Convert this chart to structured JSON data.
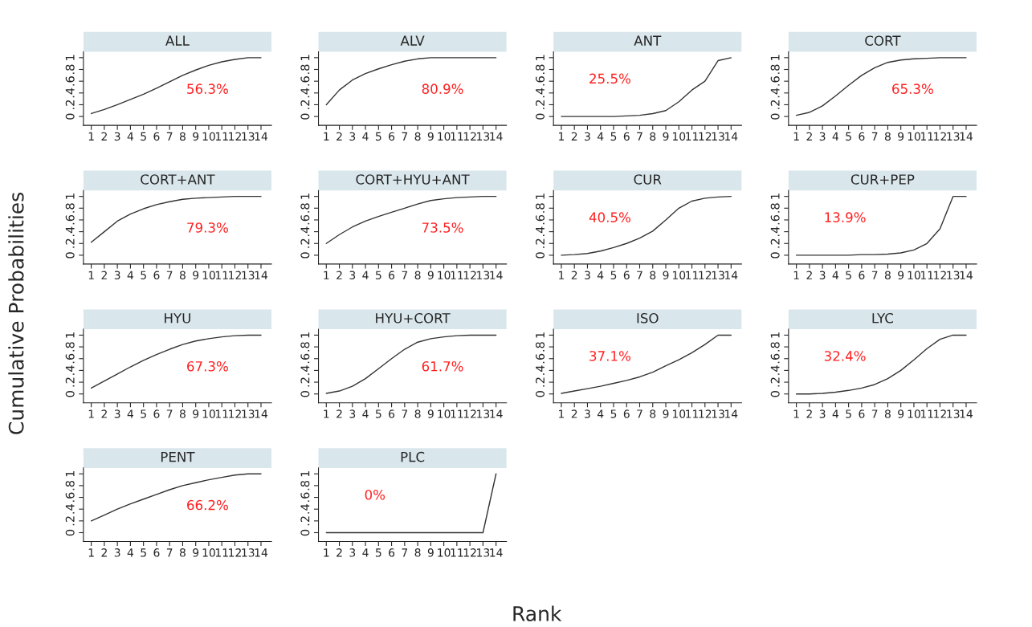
{
  "chart_data": [
    {
      "type": "line",
      "title": "ALL",
      "x": [
        1,
        2,
        3,
        4,
        5,
        6,
        7,
        8,
        9,
        10,
        11,
        12,
        13,
        14
      ],
      "series": [
        {
          "color": "#333333",
          "values": [
            0.05,
            0.12,
            0.2,
            0.29,
            0.38,
            0.48,
            0.59,
            0.7,
            0.79,
            0.87,
            0.93,
            0.97,
            1,
            1
          ]
        }
      ],
      "xlim": [
        0.4,
        14.8
      ],
      "ylim": [
        -0.15,
        1.1
      ],
      "xticks": [
        1,
        2,
        3,
        4,
        5,
        6,
        7,
        8,
        9,
        10,
        11,
        12,
        13,
        14
      ],
      "yticks": [
        0,
        {
          "value": 0.2,
          "label": ".2"
        },
        {
          "value": 0.4,
          "label": ".4"
        },
        {
          "value": 0.6,
          "label": ".6"
        },
        {
          "value": 0.8,
          "label": ".8"
        },
        1
      ],
      "grid": false,
      "annotations": [
        "56.3%"
      ]
    },
    {
      "type": "line",
      "title": "ALV",
      "x": [
        1,
        2,
        3,
        4,
        5,
        6,
        7,
        8,
        9,
        10,
        11,
        12,
        13,
        14
      ],
      "series": [
        {
          "color": "#333333",
          "values": [
            0.2,
            0.45,
            0.62,
            0.73,
            0.81,
            0.88,
            0.94,
            0.98,
            1,
            1,
            1,
            1,
            1,
            1
          ]
        }
      ],
      "xlim": [
        0.4,
        14.8
      ],
      "ylim": [
        -0.15,
        1.1
      ],
      "xticks": [
        1,
        2,
        3,
        4,
        5,
        6,
        7,
        8,
        9,
        10,
        11,
        12,
        13,
        14
      ],
      "yticks": [
        0,
        {
          "value": 0.2,
          "label": ".2"
        },
        {
          "value": 0.4,
          "label": ".4"
        },
        {
          "value": 0.6,
          "label": ".6"
        },
        {
          "value": 0.8,
          "label": ".8"
        },
        1
      ],
      "grid": false,
      "annotations": [
        "80.9%"
      ]
    },
    {
      "type": "line",
      "title": "ANT",
      "x": [
        1,
        2,
        3,
        4,
        5,
        6,
        7,
        8,
        9,
        10,
        11,
        12,
        13,
        14
      ],
      "series": [
        {
          "color": "#333333",
          "values": [
            0,
            0,
            0,
            0,
            0,
            0.01,
            0.02,
            0.05,
            0.1,
            0.25,
            0.45,
            0.6,
            0.95,
            1
          ]
        }
      ],
      "xlim": [
        0.4,
        14.8
      ],
      "ylim": [
        -0.15,
        1.1
      ],
      "xticks": [
        1,
        2,
        3,
        4,
        5,
        6,
        7,
        8,
        9,
        10,
        11,
        12,
        13,
        14
      ],
      "yticks": [
        0,
        {
          "value": 0.2,
          "label": ".2"
        },
        {
          "value": 0.4,
          "label": ".4"
        },
        {
          "value": 0.6,
          "label": ".6"
        },
        {
          "value": 0.8,
          "label": ".8"
        },
        1
      ],
      "grid": false,
      "annotations": [
        "25.5%"
      ]
    },
    {
      "type": "line",
      "title": "CORT",
      "x": [
        1,
        2,
        3,
        4,
        5,
        6,
        7,
        8,
        9,
        10,
        11,
        12,
        13,
        14
      ],
      "series": [
        {
          "color": "#333333",
          "values": [
            0.02,
            0.07,
            0.18,
            0.35,
            0.53,
            0.7,
            0.83,
            0.92,
            0.96,
            0.98,
            0.99,
            1,
            1,
            1
          ]
        }
      ],
      "xlim": [
        0.4,
        14.8
      ],
      "ylim": [
        -0.15,
        1.1
      ],
      "xticks": [
        1,
        2,
        3,
        4,
        5,
        6,
        7,
        8,
        9,
        10,
        11,
        12,
        13,
        14
      ],
      "yticks": [
        0,
        {
          "value": 0.2,
          "label": ".2"
        },
        {
          "value": 0.4,
          "label": ".4"
        },
        {
          "value": 0.6,
          "label": ".6"
        },
        {
          "value": 0.8,
          "label": ".8"
        },
        1
      ],
      "grid": false,
      "annotations": [
        "65.3%"
      ]
    },
    {
      "type": "line",
      "title": "CORT+ANT",
      "ylabel": "Cumulative Probabilities",
      "x": [
        1,
        2,
        3,
        4,
        5,
        6,
        7,
        8,
        9,
        10,
        11,
        12,
        13,
        14
      ],
      "series": [
        {
          "color": "#333333",
          "values": [
            0.22,
            0.4,
            0.58,
            0.7,
            0.79,
            0.86,
            0.91,
            0.95,
            0.97,
            0.98,
            0.99,
            1,
            1,
            1
          ]
        }
      ],
      "xlim": [
        0.4,
        14.8
      ],
      "ylim": [
        -0.15,
        1.1
      ],
      "xticks": [
        1,
        2,
        3,
        4,
        5,
        6,
        7,
        8,
        9,
        10,
        11,
        12,
        13,
        14
      ],
      "yticks": [
        0,
        {
          "value": 0.2,
          "label": ".2"
        },
        {
          "value": 0.4,
          "label": ".4"
        },
        {
          "value": 0.6,
          "label": ".6"
        },
        {
          "value": 0.8,
          "label": ".8"
        },
        1
      ],
      "grid": false,
      "annotations": [
        "79.3%"
      ]
    },
    {
      "type": "line",
      "title": "CORT+HYU+ANT",
      "x": [
        1,
        2,
        3,
        4,
        5,
        6,
        7,
        8,
        9,
        10,
        11,
        12,
        13,
        14
      ],
      "series": [
        {
          "color": "#333333",
          "values": [
            0.2,
            0.35,
            0.48,
            0.58,
            0.66,
            0.73,
            0.8,
            0.87,
            0.93,
            0.96,
            0.98,
            0.99,
            1,
            1
          ]
        }
      ],
      "xlim": [
        0.4,
        14.8
      ],
      "ylim": [
        -0.15,
        1.1
      ],
      "xticks": [
        1,
        2,
        3,
        4,
        5,
        6,
        7,
        8,
        9,
        10,
        11,
        12,
        13,
        14
      ],
      "yticks": [
        0,
        {
          "value": 0.2,
          "label": ".2"
        },
        {
          "value": 0.4,
          "label": ".4"
        },
        {
          "value": 0.6,
          "label": ".6"
        },
        {
          "value": 0.8,
          "label": ".8"
        },
        1
      ],
      "grid": false,
      "annotations": [
        "73.5%"
      ]
    },
    {
      "type": "line",
      "title": "CUR",
      "x": [
        1,
        2,
        3,
        4,
        5,
        6,
        7,
        8,
        9,
        10,
        11,
        12,
        13,
        14
      ],
      "series": [
        {
          "color": "#333333",
          "values": [
            0,
            0.01,
            0.03,
            0.07,
            0.13,
            0.2,
            0.29,
            0.41,
            0.6,
            0.8,
            0.92,
            0.97,
            0.99,
            1
          ]
        }
      ],
      "xlim": [
        0.4,
        14.8
      ],
      "ylim": [
        -0.15,
        1.1
      ],
      "xticks": [
        1,
        2,
        3,
        4,
        5,
        6,
        7,
        8,
        9,
        10,
        11,
        12,
        13,
        14
      ],
      "yticks": [
        0,
        {
          "value": 0.2,
          "label": ".2"
        },
        {
          "value": 0.4,
          "label": ".4"
        },
        {
          "value": 0.6,
          "label": ".6"
        },
        {
          "value": 0.8,
          "label": ".8"
        },
        1
      ],
      "grid": false,
      "annotations": [
        "40.5%"
      ]
    },
    {
      "type": "line",
      "title": "CUR+PEP",
      "x": [
        1,
        2,
        3,
        4,
        5,
        6,
        7,
        8,
        9,
        10,
        11,
        12,
        13,
        14
      ],
      "series": [
        {
          "color": "#333333",
          "values": [
            0,
            0,
            0,
            0,
            0,
            0.01,
            0.01,
            0.02,
            0.04,
            0.09,
            0.2,
            0.45,
            1,
            1
          ]
        }
      ],
      "xlim": [
        0.4,
        14.8
      ],
      "ylim": [
        -0.15,
        1.1
      ],
      "xticks": [
        1,
        2,
        3,
        4,
        5,
        6,
        7,
        8,
        9,
        10,
        11,
        12,
        13,
        14
      ],
      "yticks": [
        0,
        {
          "value": 0.2,
          "label": ".2"
        },
        {
          "value": 0.4,
          "label": ".4"
        },
        {
          "value": 0.6,
          "label": ".6"
        },
        {
          "value": 0.8,
          "label": ".8"
        },
        1
      ],
      "grid": false,
      "annotations": [
        "13.9%"
      ]
    },
    {
      "type": "line",
      "title": "HYU",
      "x": [
        1,
        2,
        3,
        4,
        5,
        6,
        7,
        8,
        9,
        10,
        11,
        12,
        13,
        14
      ],
      "series": [
        {
          "color": "#333333",
          "values": [
            0.1,
            0.22,
            0.34,
            0.46,
            0.57,
            0.67,
            0.76,
            0.84,
            0.9,
            0.94,
            0.97,
            0.99,
            1,
            1
          ]
        }
      ],
      "xlim": [
        0.4,
        14.8
      ],
      "ylim": [
        -0.15,
        1.1
      ],
      "xticks": [
        1,
        2,
        3,
        4,
        5,
        6,
        7,
        8,
        9,
        10,
        11,
        12,
        13,
        14
      ],
      "yticks": [
        0,
        {
          "value": 0.2,
          "label": ".2"
        },
        {
          "value": 0.4,
          "label": ".4"
        },
        {
          "value": 0.6,
          "label": ".6"
        },
        {
          "value": 0.8,
          "label": ".8"
        },
        1
      ],
      "grid": false,
      "annotations": [
        "67.3%"
      ]
    },
    {
      "type": "line",
      "title": "HYU+CORT",
      "x": [
        1,
        2,
        3,
        4,
        5,
        6,
        7,
        8,
        9,
        10,
        11,
        12,
        13,
        14
      ],
      "series": [
        {
          "color": "#333333",
          "values": [
            0.01,
            0.05,
            0.13,
            0.26,
            0.43,
            0.6,
            0.76,
            0.88,
            0.94,
            0.97,
            0.99,
            1,
            1,
            1
          ]
        }
      ],
      "xlim": [
        0.4,
        14.8
      ],
      "ylim": [
        -0.15,
        1.1
      ],
      "xticks": [
        1,
        2,
        3,
        4,
        5,
        6,
        7,
        8,
        9,
        10,
        11,
        12,
        13,
        14
      ],
      "yticks": [
        0,
        {
          "value": 0.2,
          "label": ".2"
        },
        {
          "value": 0.4,
          "label": ".4"
        },
        {
          "value": 0.6,
          "label": ".6"
        },
        {
          "value": 0.8,
          "label": ".8"
        },
        1
      ],
      "grid": false,
      "annotations": [
        "61.7%"
      ]
    },
    {
      "type": "line",
      "title": "ISO",
      "x": [
        1,
        2,
        3,
        4,
        5,
        6,
        7,
        8,
        9,
        10,
        11,
        12,
        13,
        14
      ],
      "series": [
        {
          "color": "#333333",
          "values": [
            0.01,
            0.05,
            0.09,
            0.13,
            0.18,
            0.23,
            0.29,
            0.37,
            0.48,
            0.58,
            0.7,
            0.84,
            1,
            1
          ]
        }
      ],
      "xlim": [
        0.4,
        14.8
      ],
      "ylim": [
        -0.15,
        1.1
      ],
      "xticks": [
        1,
        2,
        3,
        4,
        5,
        6,
        7,
        8,
        9,
        10,
        11,
        12,
        13,
        14
      ],
      "yticks": [
        0,
        {
          "value": 0.2,
          "label": ".2"
        },
        {
          "value": 0.4,
          "label": ".4"
        },
        {
          "value": 0.6,
          "label": ".6"
        },
        {
          "value": 0.8,
          "label": ".8"
        },
        1
      ],
      "grid": false,
      "annotations": [
        "37.1%"
      ]
    },
    {
      "type": "line",
      "title": "LYC",
      "x": [
        1,
        2,
        3,
        4,
        5,
        6,
        7,
        8,
        9,
        10,
        11,
        12,
        13,
        14
      ],
      "series": [
        {
          "color": "#333333",
          "values": [
            0,
            0,
            0.01,
            0.03,
            0.06,
            0.1,
            0.16,
            0.26,
            0.4,
            0.58,
            0.77,
            0.93,
            1,
            1
          ]
        }
      ],
      "xlim": [
        0.4,
        14.8
      ],
      "ylim": [
        -0.15,
        1.1
      ],
      "xticks": [
        1,
        2,
        3,
        4,
        5,
        6,
        7,
        8,
        9,
        10,
        11,
        12,
        13,
        14
      ],
      "yticks": [
        0,
        {
          "value": 0.2,
          "label": ".2"
        },
        {
          "value": 0.4,
          "label": ".4"
        },
        {
          "value": 0.6,
          "label": ".6"
        },
        {
          "value": 0.8,
          "label": ".8"
        },
        1
      ],
      "grid": false,
      "annotations": [
        "32.4%"
      ]
    },
    {
      "type": "line",
      "title": "PENT",
      "x": [
        1,
        2,
        3,
        4,
        5,
        6,
        7,
        8,
        9,
        10,
        11,
        12,
        13,
        14
      ],
      "series": [
        {
          "color": "#333333",
          "values": [
            0.2,
            0.3,
            0.4,
            0.49,
            0.57,
            0.65,
            0.73,
            0.8,
            0.85,
            0.9,
            0.94,
            0.98,
            1,
            1
          ]
        }
      ],
      "xlim": [
        0.4,
        14.8
      ],
      "ylim": [
        -0.15,
        1.1
      ],
      "xticks": [
        1,
        2,
        3,
        4,
        5,
        6,
        7,
        8,
        9,
        10,
        11,
        12,
        13,
        14
      ],
      "yticks": [
        0,
        {
          "value": 0.2,
          "label": ".2"
        },
        {
          "value": 0.4,
          "label": ".4"
        },
        {
          "value": 0.6,
          "label": ".6"
        },
        {
          "value": 0.8,
          "label": ".8"
        },
        1
      ],
      "grid": false,
      "annotations": [
        "66.2%"
      ]
    },
    {
      "type": "line",
      "title": "PLC",
      "xlabel": "Rank",
      "x": [
        1,
        2,
        3,
        4,
        5,
        6,
        7,
        8,
        9,
        10,
        11,
        12,
        13,
        14
      ],
      "series": [
        {
          "color": "#333333",
          "values": [
            0,
            0,
            0,
            0,
            0,
            0,
            0,
            0,
            0,
            0,
            0,
            0,
            0,
            1
          ]
        }
      ],
      "xlim": [
        0.4,
        14.8
      ],
      "ylim": [
        -0.15,
        1.1
      ],
      "xticks": [
        1,
        2,
        3,
        4,
        5,
        6,
        7,
        8,
        9,
        10,
        11,
        12,
        13,
        14
      ],
      "yticks": [
        0,
        {
          "value": 0.2,
          "label": ".2"
        },
        {
          "value": 0.4,
          "label": ".4"
        },
        {
          "value": 0.6,
          "label": ".6"
        },
        {
          "value": 0.8,
          "label": ".8"
        },
        1
      ],
      "grid": false,
      "annotations": [
        "0%"
      ]
    }
  ]
}
